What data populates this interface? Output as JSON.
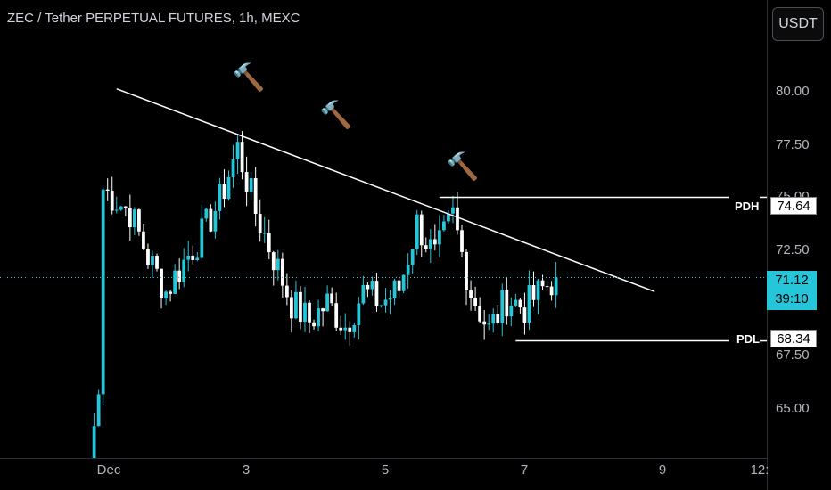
{
  "header": {
    "title": "ZEC / Tether PERPETUAL FUTURES, 1h, MEXC"
  },
  "currency_button": "USDT",
  "price_axis": {
    "ticks": [
      "80.00",
      "77.50",
      "75.00",
      "72.50",
      "67.50",
      "65.00"
    ]
  },
  "time_axis": {
    "ticks": [
      "Dec",
      "3",
      "5",
      "7",
      "9",
      "12:"
    ]
  },
  "levels": {
    "pdh": {
      "label": "PDH",
      "value": "74.64"
    },
    "pdl": {
      "label": "PDL",
      "value": "68.34"
    }
  },
  "current_price": {
    "value": "71.12",
    "countdown": "39:10"
  },
  "annotations": {
    "hammer_icon": "hammer-icon",
    "count": 3
  },
  "colors": {
    "up": "#26c6da",
    "down": "#ffffff",
    "background": "#000000",
    "price_line": "#26c6da"
  },
  "chart_data": {
    "type": "candlestick",
    "title": "ZEC / Tether PERPETUAL FUTURES, 1h, MEXC",
    "ylim": [
      63.2,
      83.3
    ],
    "x_range": [
      "Dec 1 19:00",
      "Dec 8 22:00"
    ],
    "grid": false,
    "close_path": [
      [
        "Dec 2 15:00",
        63.2
      ],
      [
        "Dec 2 17:00",
        66.0
      ],
      [
        "Dec 2 18:00",
        75.0
      ],
      [
        "Dec 2 21:00",
        74.5
      ],
      [
        "Dec 3 00:00",
        74.0
      ],
      [
        "Dec 3 04:00",
        72.0
      ],
      [
        "Dec 3 08:00",
        70.5
      ],
      [
        "Dec 3 12:00",
        71.8
      ],
      [
        "Dec 3 16:00",
        73.0
      ],
      [
        "Dec 3 20:00",
        74.5
      ],
      [
        "Dec 4 00:00",
        76.8
      ],
      [
        "Dec 4 04:00",
        74.0
      ],
      [
        "Dec 4 08:00",
        72.0
      ],
      [
        "Dec 4 12:00",
        70.0
      ],
      [
        "Dec 4 16:00",
        69.2
      ],
      [
        "Dec 4 20:00",
        70.0
      ],
      [
        "Dec 5 00:00",
        69.0
      ],
      [
        "Dec 5 04:00",
        70.5
      ],
      [
        "Dec 5 08:00",
        70.0
      ],
      [
        "Dec 5 12:00",
        70.6
      ],
      [
        "Dec 5 16:00",
        73.5
      ],
      [
        "Dec 5 20:00",
        72.0
      ],
      [
        "Dec 6 00:00",
        73.8
      ],
      [
        "Dec 6 04:00",
        70.5
      ],
      [
        "Dec 6 08:00",
        68.8
      ],
      [
        "Dec 6 12:00",
        70.2
      ],
      [
        "Dec 6 16:00",
        69.8
      ],
      [
        "Dec 6 20:00",
        70.6
      ],
      [
        "Dec 6 23:00",
        71.12
      ]
    ],
    "trendline": {
      "from": [
        "Dec 2 21:00",
        79.4
      ],
      "to": [
        "Dec 7 21:00",
        70.5
      ]
    },
    "horizontal_levels": [
      {
        "name": "PDH",
        "value": 74.64,
        "from": "Dec 5 21:00"
      },
      {
        "name": "PDL",
        "value": 68.34,
        "from": "Dec 6 14:00"
      }
    ],
    "current_price": 71.12
  }
}
